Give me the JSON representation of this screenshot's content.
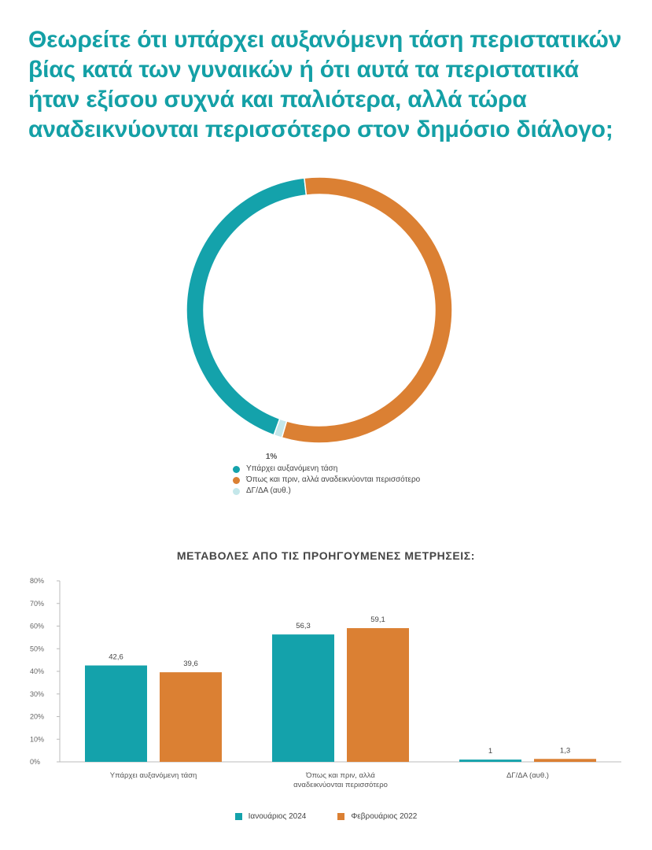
{
  "title": "Θεωρείτε ότι υπάρχει αυξανόμενη τάση περιστατικών\nβίας κατά των γυναικών ή ότι αυτά τα περιστατικά\nήταν εξίσου συχνά και παλιότερα, αλλά τώρα\nαναδεικνύονται περισσότερο στον δημόσιο διάλογο;",
  "colors": {
    "teal": "#14a2ab",
    "orange": "#db8033",
    "light": "#c4e7ea",
    "title": "#14a0a6"
  },
  "chart_data": [
    {
      "type": "pie",
      "style": "donut",
      "slices": [
        {
          "label": "Υπάρχει αυξανόμενη τάση",
          "value": 42.6,
          "value_label": "42,6%",
          "color": "#14a2ab"
        },
        {
          "label": "Όπως και πριν, αλλά αναδεικνύονται περισσότερο",
          "value": 56.3,
          "value_label": "56,3%",
          "color": "#db8033"
        },
        {
          "label": "ΔΓ/ΔΑ (αυθ.)",
          "value": 1,
          "value_label": "1%",
          "color": "#c4e7ea"
        }
      ],
      "legend_position": "bottom"
    },
    {
      "type": "bar",
      "title": "ΜΕΤΑΒΟΛΕΣ ΑΠΟ ΤΙΣ ΠΡΟΗΓΟΥΜΕΝΕΣ ΜΕΤΡΗΣΕΙΣ:",
      "categories": [
        "Υπάρχει αυξανόμενη τάση",
        "Όπως και πριν, αλλά\nαναδεικνύονται περισσότερο",
        "ΔΓ/ΔΑ (αυθ.)"
      ],
      "series": [
        {
          "name": "Ιανουάριος 2024",
          "values": [
            42.6,
            56.3,
            1
          ],
          "value_labels": [
            "42,6",
            "56,3",
            "1"
          ],
          "color": "#14a2ab"
        },
        {
          "name": "Φεβρουάριος 2022",
          "values": [
            39.6,
            59.1,
            1.3
          ],
          "value_labels": [
            "39,6",
            "59,1",
            "1,3"
          ],
          "color": "#db8033"
        }
      ],
      "ylim": [
        0,
        80
      ],
      "yticks": [
        "0%",
        "10%",
        "20%",
        "30%",
        "40%",
        "50%",
        "60%",
        "70%",
        "80%"
      ],
      "legend_position": "bottom"
    }
  ]
}
